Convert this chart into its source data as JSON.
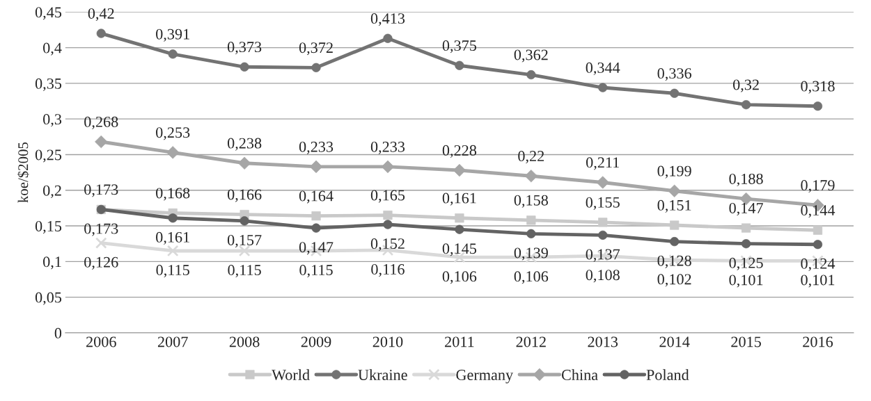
{
  "chart_data": {
    "type": "line",
    "ylabel": "koe/$2005",
    "categories": [
      "2006",
      "2007",
      "2008",
      "2009",
      "2010",
      "2011",
      "2012",
      "2013",
      "2014",
      "2015",
      "2016"
    ],
    "ylim": [
      0,
      0.45
    ],
    "yticks": [
      {
        "value": 0,
        "label": "0"
      },
      {
        "value": 0.05,
        "label": "0,05"
      },
      {
        "value": 0.1,
        "label": "0,1"
      },
      {
        "value": 0.15,
        "label": "0,15"
      },
      {
        "value": 0.2,
        "label": "0,2"
      },
      {
        "value": 0.25,
        "label": "0,25"
      },
      {
        "value": 0.3,
        "label": "0,3"
      },
      {
        "value": 0.35,
        "label": "0,35"
      },
      {
        "value": 0.4,
        "label": "0,4"
      },
      {
        "value": 0.45,
        "label": "0,45"
      }
    ],
    "grid": "y",
    "legend": "bottom",
    "series": [
      {
        "name": "World",
        "color": "#c9c9c9",
        "marker": "square",
        "values": [
          0.173,
          0.168,
          0.166,
          0.164,
          0.165,
          0.161,
          0.158,
          0.155,
          0.151,
          0.147,
          0.144
        ],
        "value_labels": [
          "0,173",
          "0,168",
          "0,166",
          "0,164",
          "0,165",
          "0,161",
          "0,158",
          "0,155",
          "0,151",
          "0,147",
          "0,144"
        ]
      },
      {
        "name": "Ukraine",
        "color": "#737373",
        "marker": "circle",
        "values": [
          0.42,
          0.391,
          0.373,
          0.372,
          0.413,
          0.375,
          0.362,
          0.344,
          0.336,
          0.32,
          0.318
        ],
        "value_labels": [
          "0,42",
          "0,391",
          "0,373",
          "0,372",
          "0,413",
          "0,375",
          "0,362",
          "0,344",
          "0,336",
          "0,32",
          "0,318"
        ]
      },
      {
        "name": "Germany",
        "color": "#d9d9d9",
        "marker": "cross",
        "values": [
          0.126,
          0.115,
          0.115,
          0.115,
          0.116,
          0.106,
          0.106,
          0.108,
          0.102,
          0.101,
          0.101
        ],
        "value_labels": [
          "0,126",
          "0,115",
          "0,115",
          "0,115",
          "0,116",
          "0,106",
          "0,106",
          "0,108",
          "0,102",
          "0,101",
          "0,101"
        ]
      },
      {
        "name": "China",
        "color": "#a6a6a6",
        "marker": "diamond",
        "values": [
          0.268,
          0.253,
          0.238,
          0.233,
          0.233,
          0.228,
          0.22,
          0.211,
          0.199,
          0.188,
          0.179
        ],
        "value_labels": [
          "0,268",
          "0,253",
          "0,238",
          "0,233",
          "0,233",
          "0,228",
          "0,22",
          "0,211",
          "0,199",
          "0,188",
          "0,179"
        ]
      },
      {
        "name": "Poland",
        "color": "#636363",
        "marker": "circle",
        "values": [
          0.173,
          0.161,
          0.157,
          0.147,
          0.152,
          0.145,
          0.139,
          0.137,
          0.128,
          0.125,
          0.124
        ],
        "value_labels": [
          "0,173",
          "0,161",
          "0,157",
          "0,147",
          "0,152",
          "0,145",
          "0,139",
          "0,137",
          "0,128",
          "0,125",
          "0,124"
        ]
      }
    ]
  }
}
